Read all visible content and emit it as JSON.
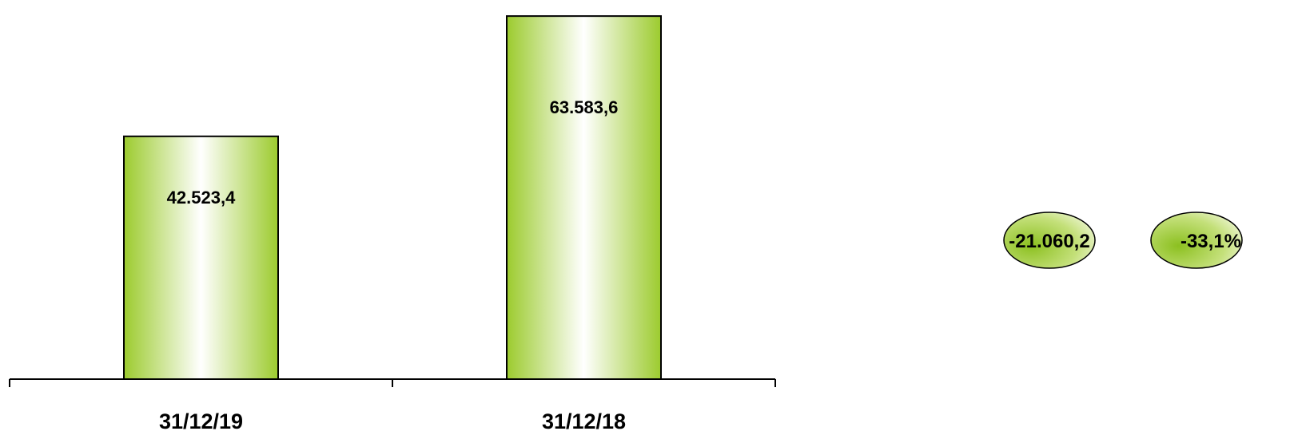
{
  "chart_data": {
    "type": "bar",
    "categories": [
      "31/12/19",
      "31/12/18"
    ],
    "values": [
      42523.4,
      63583.6
    ],
    "value_labels": [
      "42.523,4",
      "63.583,6"
    ],
    "ylim": [
      0,
      65000
    ],
    "grid": false,
    "legend": "none",
    "title": "",
    "xlabel": "",
    "ylabel": ""
  },
  "annotations": {
    "absolute_change": "-21.060,2",
    "percent_change": "-33,1%"
  },
  "colors": {
    "bar_edge": "#74a800",
    "bar_fill_mid": "#ffffff",
    "bar_fill_side": "#a8d24a",
    "badge_fill": "#9cc93a",
    "axis": "#000000",
    "text": "#000000"
  }
}
